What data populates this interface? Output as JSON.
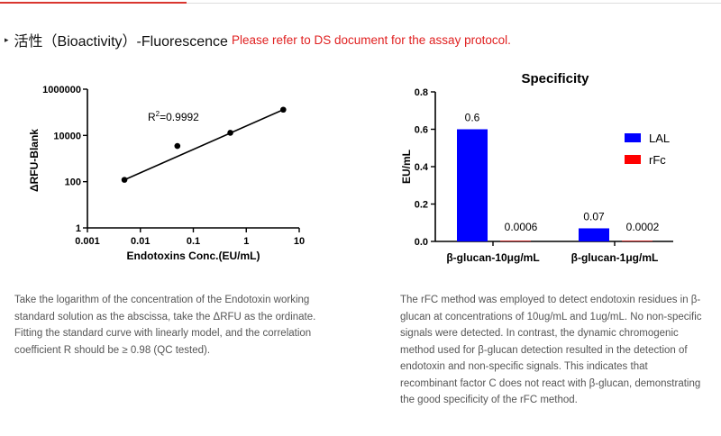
{
  "header": {
    "marker_glyph": "▸",
    "title": "活性（Bioactivity）-Fluorescence",
    "note": "Please refer to DS document for the assay protocol.",
    "accent_color": "#d9362f",
    "note_color": "#e02020"
  },
  "chart_data": [
    {
      "type": "scatter",
      "title": "",
      "xlabel": "Endotoxins Conc.(EU/mL)",
      "ylabel": "ΔRFU-Blank",
      "xscale": "log",
      "yscale": "log",
      "xlim": [
        0.001,
        10
      ],
      "ylim": [
        1,
        1000000
      ],
      "xticks": [
        "0.001",
        "0.01",
        "0.1",
        "1",
        "10"
      ],
      "yticks": [
        "1",
        "100",
        "10000",
        "1000000"
      ],
      "x": [
        0.005,
        0.05,
        0.5,
        5
      ],
      "y": [
        120,
        3500,
        13000,
        130000
      ],
      "fit": "linear",
      "annotation": {
        "prefix": "R",
        "superscript": "2",
        "text": "=0.9992"
      }
    },
    {
      "type": "bar",
      "title": "Specificity",
      "xlabel": "",
      "ylabel": "EU/mL",
      "ylim": [
        0,
        0.8
      ],
      "yticks": [
        "0.0",
        "0.2",
        "0.4",
        "0.6",
        "0.8"
      ],
      "categories": [
        "β-glucan-10μg/mL",
        "β-glucan-1μg/mL"
      ],
      "series": [
        {
          "name": "LAL",
          "color": "#0000ff",
          "values": [
            0.6,
            0.07
          ],
          "labels": [
            "0.6",
            "0.07"
          ]
        },
        {
          "name": "rFc",
          "color": "#ff0000",
          "values": [
            0.0006,
            0.0002
          ],
          "labels": [
            "0.0006",
            "0.0002"
          ]
        }
      ],
      "legend": "top-right"
    }
  ],
  "descriptions": {
    "left": "Take the logarithm of the concentration of the Endotoxin working standard solution as the abscissa, take the ΔRFU as the ordinate. Fitting the standard curve with linearly model, and the correlation coefficient R should be ≥ 0.98 (QC tested).",
    "right": "The rFC method was employed to detect endotoxin residues in β-glucan at concentrations of 10ug/mL and 1ug/mL. No non-specific signals were detected. In contrast, the dynamic chromogenic method used for β-glucan detection resulted in the detection of endotoxin and non-specific signals. This indicates that recombinant factor C does not react with β-glucan, demonstrating the good specificity of the rFC method."
  }
}
